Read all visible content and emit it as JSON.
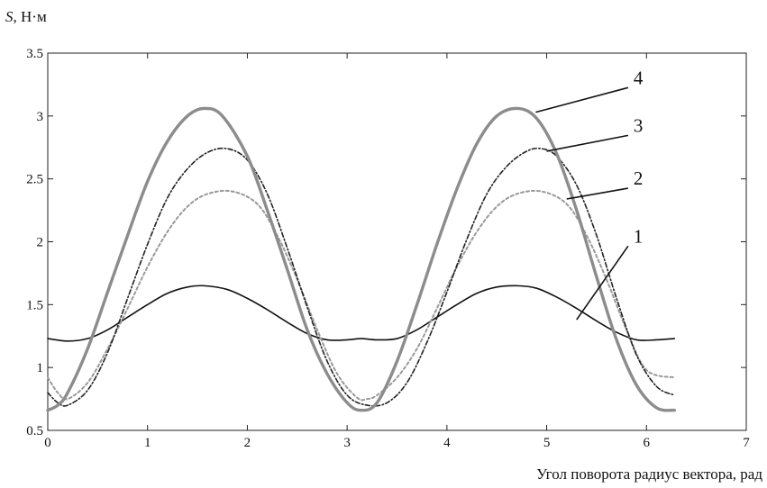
{
  "chart_data": {
    "type": "line",
    "ylabel_var": "S",
    "ylabel_unit": ", Н·м",
    "xlabel": "Угол поворота радиус вектора, рад",
    "xlim": [
      0,
      7
    ],
    "ylim": [
      0.5,
      3.5
    ],
    "xticks": [
      "0",
      "1",
      "2",
      "3",
      "4",
      "5",
      "6",
      "7"
    ],
    "yticks": [
      "0.5",
      "1",
      "1.5",
      "2",
      "2.5",
      "3",
      "3.5"
    ],
    "grid": false,
    "series": [
      {
        "name": "1",
        "color": "#111111",
        "style": "solid",
        "x": [
          0,
          0.2,
          0.4,
          0.6,
          0.8,
          1.0,
          1.2,
          1.4,
          1.57,
          1.8,
          2.0,
          2.2,
          2.4,
          2.6,
          2.8,
          3.0,
          3.14,
          3.3,
          3.5,
          3.7,
          3.9,
          4.1,
          4.3,
          4.5,
          4.71,
          4.9,
          5.1,
          5.3,
          5.5,
          5.7,
          5.9,
          6.1,
          6.28
        ],
        "y": [
          1.23,
          1.21,
          1.23,
          1.3,
          1.4,
          1.5,
          1.59,
          1.64,
          1.65,
          1.62,
          1.55,
          1.46,
          1.36,
          1.27,
          1.22,
          1.22,
          1.23,
          1.22,
          1.23,
          1.3,
          1.4,
          1.5,
          1.59,
          1.64,
          1.65,
          1.63,
          1.56,
          1.47,
          1.37,
          1.28,
          1.22,
          1.22,
          1.23
        ]
      },
      {
        "name": "2",
        "color": "#999999",
        "style": "dotted",
        "x": [
          0,
          0.1,
          0.2,
          0.4,
          0.6,
          0.8,
          1.0,
          1.2,
          1.4,
          1.6,
          1.85,
          2.1,
          2.3,
          2.5,
          2.7,
          2.9,
          3.1,
          3.2,
          3.3,
          3.5,
          3.7,
          3.9,
          4.1,
          4.3,
          4.5,
          4.7,
          4.95,
          5.2,
          5.4,
          5.6,
          5.8,
          6.0,
          6.28
        ],
        "y": [
          0.92,
          0.8,
          0.75,
          0.88,
          1.15,
          1.47,
          1.8,
          2.08,
          2.28,
          2.38,
          2.4,
          2.3,
          2.05,
          1.7,
          1.3,
          0.95,
          0.76,
          0.75,
          0.78,
          0.92,
          1.15,
          1.47,
          1.8,
          2.08,
          2.28,
          2.38,
          2.4,
          2.3,
          2.05,
          1.7,
          1.3,
          0.98,
          0.92
        ]
      },
      {
        "name": "3",
        "color": "#222222",
        "style": "dashdot",
        "x": [
          0,
          0.1,
          0.2,
          0.4,
          0.6,
          0.8,
          1.0,
          1.2,
          1.4,
          1.6,
          1.8,
          2.0,
          2.2,
          2.4,
          2.6,
          2.8,
          3.0,
          3.2,
          3.4,
          3.6,
          3.8,
          4.0,
          4.2,
          4.4,
          4.6,
          4.8,
          4.95,
          5.1,
          5.3,
          5.5,
          5.7,
          5.9,
          6.1,
          6.28
        ],
        "y": [
          0.8,
          0.72,
          0.7,
          0.82,
          1.12,
          1.55,
          1.98,
          2.35,
          2.58,
          2.71,
          2.74,
          2.65,
          2.38,
          1.95,
          1.48,
          1.05,
          0.78,
          0.7,
          0.72,
          0.88,
          1.2,
          1.6,
          2.02,
          2.38,
          2.6,
          2.72,
          2.74,
          2.68,
          2.45,
          2.05,
          1.55,
          1.1,
          0.85,
          0.78
        ]
      },
      {
        "name": "4",
        "color": "#8c8c8c",
        "style": "solid-thick",
        "x": [
          0,
          0.1,
          0.2,
          0.4,
          0.6,
          0.8,
          1.0,
          1.2,
          1.4,
          1.57,
          1.75,
          2.0,
          2.2,
          2.4,
          2.6,
          2.8,
          3.0,
          3.14,
          3.3,
          3.5,
          3.7,
          3.9,
          4.1,
          4.3,
          4.5,
          4.71,
          4.9,
          5.1,
          5.3,
          5.5,
          5.7,
          5.9,
          6.1,
          6.28
        ],
        "y": [
          0.66,
          0.7,
          0.8,
          1.15,
          1.6,
          2.05,
          2.48,
          2.8,
          3.0,
          3.06,
          3.0,
          2.68,
          2.25,
          1.78,
          1.3,
          0.95,
          0.72,
          0.66,
          0.72,
          1.05,
          1.5,
          1.98,
          2.42,
          2.78,
          3.0,
          3.06,
          2.98,
          2.7,
          2.25,
          1.72,
          1.22,
          0.86,
          0.68,
          0.66
        ]
      }
    ],
    "callouts": [
      {
        "label": "4",
        "tx": 5.87,
        "ty": 3.24,
        "ax": 4.89,
        "ay": 3.03
      },
      {
        "label": "3",
        "tx": 5.87,
        "ty": 2.86,
        "ax": 5.0,
        "ay": 2.72
      },
      {
        "label": "2",
        "tx": 5.87,
        "ty": 2.44,
        "ax": 5.2,
        "ay": 2.34
      },
      {
        "label": "1",
        "tx": 5.87,
        "ty": 1.98,
        "ax": 5.3,
        "ay": 1.38
      }
    ]
  }
}
